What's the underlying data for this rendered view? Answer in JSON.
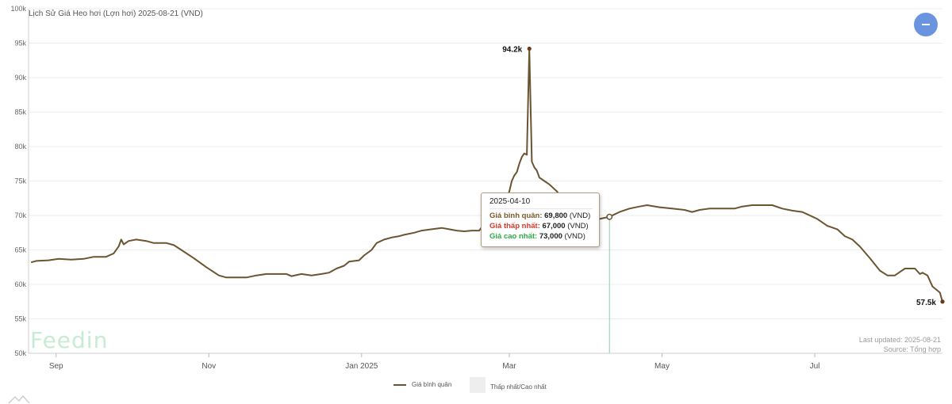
{
  "title": "Lịch Sử Giá Heo hơi (Lợn hơi) 2025-08-21 (VND)",
  "collapse_button": {
    "icon": "minus-icon"
  },
  "watermark": "Feedin",
  "meta": {
    "last_updated": "Last updated: 2025-08-21",
    "source": "Source: Tổng hợp"
  },
  "tooltip": {
    "date": "2025-04-10",
    "rows": [
      {
        "label": "Giá bình quân:",
        "value": "69,800",
        "unit": "(VND)",
        "color": "#7a5a2a"
      },
      {
        "label": "Giá thấp nhất:",
        "value": "67,000",
        "unit": "(VND)",
        "color": "#d43a2a"
      },
      {
        "label": "Giá cao nhất:",
        "value": "73,000",
        "unit": "(VND)",
        "color": "#2eaa45"
      }
    ]
  },
  "legend": {
    "series": "Giá bình quân",
    "range": "Thấp nhất/Cao nhất"
  },
  "chart_data": {
    "type": "line",
    "ylim": [
      50000,
      100000
    ],
    "y_ticks": [
      "50k",
      "55k",
      "60k",
      "65k",
      "70k",
      "75k",
      "80k",
      "85k",
      "90k",
      "95k",
      "100k"
    ],
    "y_tick_values": [
      50000,
      55000,
      60000,
      65000,
      70000,
      75000,
      80000,
      85000,
      90000,
      95000,
      100000
    ],
    "x_range": [
      "2024-08-21",
      "2025-08-21"
    ],
    "x_ticks": [
      {
        "date": "2024-09-01",
        "label": "Sep"
      },
      {
        "date": "2024-11-01",
        "label": "Nov"
      },
      {
        "date": "2025-01-01",
        "label": "Jan 2025"
      },
      {
        "date": "2025-03-01",
        "label": "Mar"
      },
      {
        "date": "2025-05-01",
        "label": "May"
      },
      {
        "date": "2025-07-01",
        "label": "Jul"
      }
    ],
    "grid": true,
    "colors": {
      "line": "#6b5430",
      "crosshair": "#8ed0a8"
    },
    "crosshair_date": "2025-04-10",
    "annotations": [
      {
        "date": "2025-03-09",
        "value": 94200,
        "label": "94.2k"
      },
      {
        "date": "2025-08-21",
        "value": 57500,
        "label": "57.5k"
      }
    ],
    "series": [
      {
        "name": "Giá bình quân",
        "points": [
          [
            "2024-08-22",
            63200
          ],
          [
            "2024-08-24",
            63400
          ],
          [
            "2024-08-29",
            63500
          ],
          [
            "2024-09-02",
            63700
          ],
          [
            "2024-09-07",
            63600
          ],
          [
            "2024-09-12",
            63700
          ],
          [
            "2024-09-16",
            64000
          ],
          [
            "2024-09-21",
            64000
          ],
          [
            "2024-09-24",
            64500
          ],
          [
            "2024-09-26",
            65500
          ],
          [
            "2024-09-27",
            66500
          ],
          [
            "2024-09-28",
            65800
          ],
          [
            "2024-09-30",
            66300
          ],
          [
            "2024-10-03",
            66500
          ],
          [
            "2024-10-07",
            66300
          ],
          [
            "2024-10-10",
            66000
          ],
          [
            "2024-10-15",
            66000
          ],
          [
            "2024-10-18",
            65700
          ],
          [
            "2024-10-21",
            65000
          ],
          [
            "2024-10-26",
            63800
          ],
          [
            "2024-10-31",
            62500
          ],
          [
            "2024-11-05",
            61300
          ],
          [
            "2024-11-08",
            61000
          ],
          [
            "2024-11-12",
            61000
          ],
          [
            "2024-11-16",
            61000
          ],
          [
            "2024-11-20",
            61300
          ],
          [
            "2024-11-24",
            61500
          ],
          [
            "2024-11-29",
            61500
          ],
          [
            "2024-12-02",
            61500
          ],
          [
            "2024-12-04",
            61200
          ],
          [
            "2024-12-08",
            61500
          ],
          [
            "2024-12-12",
            61300
          ],
          [
            "2024-12-16",
            61500
          ],
          [
            "2024-12-19",
            61700
          ],
          [
            "2024-12-22",
            62300
          ],
          [
            "2024-12-25",
            62700
          ],
          [
            "2024-12-27",
            63300
          ],
          [
            "2024-12-31",
            63500
          ],
          [
            "2025-01-02",
            64200
          ],
          [
            "2025-01-05",
            65000
          ],
          [
            "2025-01-07",
            66000
          ],
          [
            "2025-01-10",
            66500
          ],
          [
            "2025-01-13",
            66800
          ],
          [
            "2025-01-16",
            67000
          ],
          [
            "2025-01-18",
            67200
          ],
          [
            "2025-01-22",
            67500
          ],
          [
            "2025-01-25",
            67800
          ],
          [
            "2025-01-29",
            68000
          ],
          [
            "2025-02-02",
            68200
          ],
          [
            "2025-02-05",
            68000
          ],
          [
            "2025-02-08",
            67800
          ],
          [
            "2025-02-11",
            67700
          ],
          [
            "2025-02-14",
            67800
          ],
          [
            "2025-02-17",
            67800
          ],
          [
            "2025-02-19",
            68800
          ],
          [
            "2025-02-21",
            69200
          ],
          [
            "2025-02-23",
            70000
          ],
          [
            "2025-02-25",
            70500
          ],
          [
            "2025-02-27",
            71200
          ],
          [
            "2025-03-01",
            73500
          ],
          [
            "2025-03-02",
            75000
          ],
          [
            "2025-03-03",
            75800
          ],
          [
            "2025-03-04",
            76300
          ],
          [
            "2025-03-05",
            77500
          ],
          [
            "2025-03-06",
            78500
          ],
          [
            "2025-03-07",
            79000
          ],
          [
            "2025-03-08",
            78800
          ],
          [
            "2025-03-09",
            94200
          ],
          [
            "2025-03-10",
            77800
          ],
          [
            "2025-03-11",
            77000
          ],
          [
            "2025-03-12",
            76500
          ],
          [
            "2025-03-13",
            75500
          ],
          [
            "2025-03-15",
            75000
          ],
          [
            "2025-03-17",
            74500
          ],
          [
            "2025-03-20",
            73500
          ],
          [
            "2025-03-24",
            71500
          ],
          [
            "2025-03-28",
            70500
          ],
          [
            "2025-04-02",
            70000
          ],
          [
            "2025-04-06",
            69500
          ],
          [
            "2025-04-10",
            69800
          ],
          [
            "2025-04-14",
            70500
          ],
          [
            "2025-04-18",
            71000
          ],
          [
            "2025-04-22",
            71300
          ],
          [
            "2025-04-25",
            71500
          ],
          [
            "2025-04-30",
            71200
          ],
          [
            "2025-05-05",
            71000
          ],
          [
            "2025-05-10",
            70800
          ],
          [
            "2025-05-13",
            70500
          ],
          [
            "2025-05-16",
            70800
          ],
          [
            "2025-05-20",
            71000
          ],
          [
            "2025-05-25",
            71000
          ],
          [
            "2025-05-30",
            71000
          ],
          [
            "2025-06-02",
            71300
          ],
          [
            "2025-06-06",
            71500
          ],
          [
            "2025-06-10",
            71500
          ],
          [
            "2025-06-14",
            71500
          ],
          [
            "2025-06-18",
            71000
          ],
          [
            "2025-06-22",
            70700
          ],
          [
            "2025-06-26",
            70500
          ],
          [
            "2025-07-02",
            69500
          ],
          [
            "2025-07-06",
            68500
          ],
          [
            "2025-07-10",
            68000
          ],
          [
            "2025-07-13",
            67000
          ],
          [
            "2025-07-16",
            66500
          ],
          [
            "2025-07-19",
            65500
          ],
          [
            "2025-07-23",
            63800
          ],
          [
            "2025-07-27",
            62000
          ],
          [
            "2025-07-30",
            61300
          ],
          [
            "2025-08-02",
            61300
          ],
          [
            "2025-08-04",
            61800
          ],
          [
            "2025-08-06",
            62300
          ],
          [
            "2025-08-10",
            62300
          ],
          [
            "2025-08-12",
            61500
          ],
          [
            "2025-08-13",
            61700
          ],
          [
            "2025-08-15",
            61300
          ],
          [
            "2025-08-17",
            59700
          ],
          [
            "2025-08-20",
            58800
          ],
          [
            "2025-08-21",
            57500
          ]
        ]
      }
    ]
  }
}
